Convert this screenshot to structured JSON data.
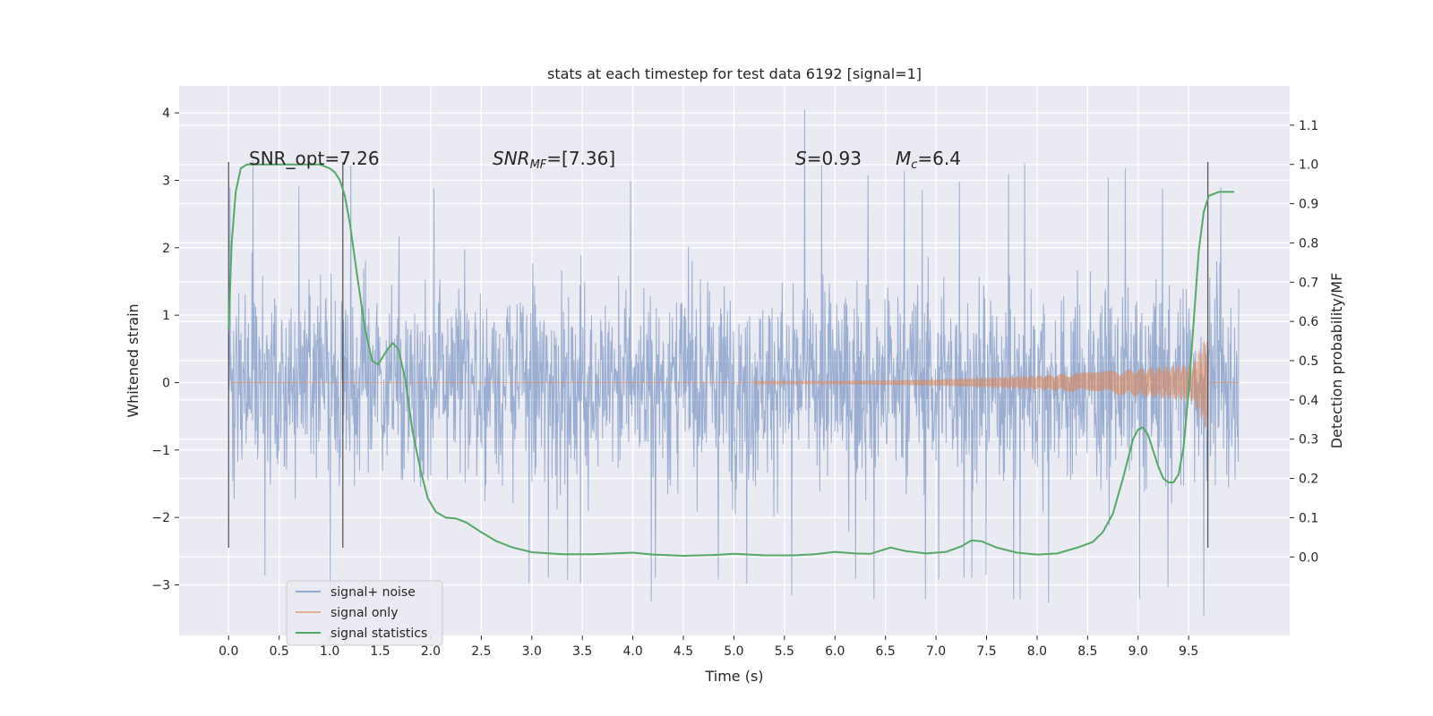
{
  "chart_data": {
    "type": "line",
    "title": "stats at each timestep for test data 6192 [signal=1]",
    "xlabel": "Time (s)",
    "ylabel_left": "Whitened strain",
    "ylabel_right": "Detection probability/MF",
    "xlim": [
      -0.49,
      10.5
    ],
    "ylim_left": [
      -3.75,
      4.4
    ],
    "ylim_right": [
      -0.2,
      1.2
    ],
    "x_ticks": [
      "0.0",
      "0.5",
      "1.0",
      "1.5",
      "2.0",
      "2.5",
      "3.0",
      "3.5",
      "4.0",
      "4.5",
      "5.0",
      "5.5",
      "6.0",
      "6.5",
      "7.0",
      "7.5",
      "8.0",
      "8.5",
      "9.0",
      "9.5"
    ],
    "y_ticks_left": [
      "−3",
      "−2",
      "−1",
      "0",
      "1",
      "2",
      "3",
      "4"
    ],
    "y_ticks_right": [
      "0.0",
      "0.1",
      "0.2",
      "0.3",
      "0.4",
      "0.5",
      "0.6",
      "0.7",
      "0.8",
      "0.9",
      "1.0",
      "1.1"
    ],
    "grid": true,
    "background": "#eaeaf2",
    "annotations": {
      "snr_opt": "SNR_opt=7.26",
      "snr_mf_label": "SNR",
      "snr_mf_sub": "MF",
      "snr_mf_value": "=[7.36]",
      "s_label": "S",
      "s_value": "=0.93",
      "mc_label": "M",
      "mc_sub": "c",
      "mc_value": "=6.4"
    },
    "vertical_markers": [
      0.0,
      1.13,
      9.69
    ],
    "series": [
      {
        "name": "signal+ noise",
        "color": "#4c72b0",
        "description_envelope": {
          "typical_amplitude": 1.5,
          "peak_max": 4.05,
          "peak_min": -3.45
        }
      },
      {
        "name": "signal only",
        "color": "#dd8452",
        "chirp": {
          "start_time": 5.2,
          "end_time": 9.69,
          "peak_amplitude": 0.75
        }
      },
      {
        "name": "signal statistics",
        "color": "#55a868",
        "axis": "right",
        "x": [
          0.0,
          0.03,
          0.07,
          0.12,
          0.18,
          0.25,
          0.35,
          0.5,
          0.7,
          0.9,
          1.0,
          1.05,
          1.1,
          1.15,
          1.2,
          1.27,
          1.35,
          1.42,
          1.48,
          1.55,
          1.62,
          1.68,
          1.75,
          1.82,
          1.9,
          1.97,
          2.05,
          2.15,
          2.25,
          2.35,
          2.5,
          2.65,
          2.8,
          3.0,
          3.3,
          3.6,
          4.0,
          4.2,
          4.5,
          4.8,
          5.0,
          5.3,
          5.6,
          5.8,
          6.0,
          6.2,
          6.35,
          6.55,
          6.7,
          6.9,
          7.1,
          7.25,
          7.35,
          7.45,
          7.6,
          7.8,
          8.0,
          8.2,
          8.4,
          8.55,
          8.65,
          8.75,
          8.85,
          8.95,
          9.0,
          9.05,
          9.1,
          9.15,
          9.2,
          9.25,
          9.3,
          9.35,
          9.4,
          9.45,
          9.5,
          9.55,
          9.6,
          9.65,
          9.7,
          9.75,
          9.8,
          9.85,
          9.9,
          9.95
        ],
        "y": [
          0.58,
          0.8,
          0.93,
          0.99,
          1.0,
          1.0,
          1.0,
          1.0,
          1.0,
          1.0,
          0.99,
          0.98,
          0.96,
          0.92,
          0.85,
          0.72,
          0.58,
          0.5,
          0.49,
          0.52,
          0.545,
          0.53,
          0.45,
          0.32,
          0.22,
          0.15,
          0.115,
          0.1,
          0.098,
          0.088,
          0.063,
          0.04,
          0.025,
          0.012,
          0.007,
          0.007,
          0.011,
          0.006,
          0.003,
          0.005,
          0.008,
          0.004,
          0.004,
          0.007,
          0.013,
          0.009,
          0.008,
          0.024,
          0.015,
          0.009,
          0.013,
          0.027,
          0.042,
          0.04,
          0.024,
          0.011,
          0.006,
          0.009,
          0.024,
          0.038,
          0.063,
          0.11,
          0.2,
          0.3,
          0.325,
          0.33,
          0.31,
          0.27,
          0.23,
          0.2,
          0.19,
          0.19,
          0.21,
          0.28,
          0.42,
          0.6,
          0.78,
          0.88,
          0.92,
          0.925,
          0.93,
          0.93,
          0.93,
          0.93
        ]
      }
    ],
    "legend": {
      "placement": "lower-left",
      "entries": [
        "signal+ noise",
        "signal only",
        "signal statistics"
      ]
    }
  }
}
